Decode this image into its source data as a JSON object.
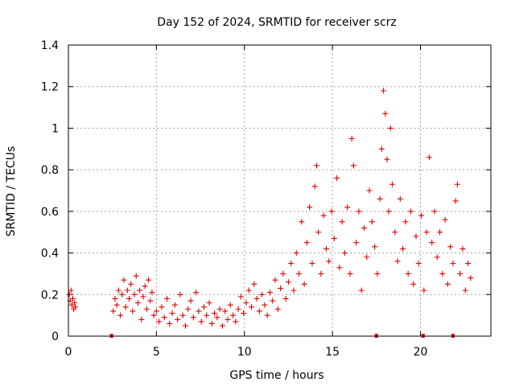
{
  "chart_data": {
    "type": "scatter",
    "title": "Day 152 of 2024, SRMTID for receiver scrz",
    "xlabel": "GPS time / hours",
    "ylabel": "SRMTID / TECUs",
    "xlim": [
      0,
      24
    ],
    "ylim": [
      0,
      1.4
    ],
    "x_ticks": [
      0,
      5,
      10,
      15,
      20
    ],
    "x_tick_labels": [
      "0",
      "5",
      "10",
      "15",
      "20"
    ],
    "y_ticks": [
      0,
      0.2,
      0.4,
      0.6,
      0.8,
      1,
      1.2,
      1.4
    ],
    "y_tick_labels": [
      "0",
      "0.2",
      "0.4",
      "0.6",
      "0.8",
      "1",
      "1.2",
      "1.4"
    ],
    "grid": true,
    "marker": "plus",
    "color": "#e00000",
    "series": [
      {
        "name": "SRMTID",
        "points": [
          [
            0.05,
            0.2
          ],
          [
            0.1,
            0.17
          ],
          [
            0.15,
            0.22
          ],
          [
            0.2,
            0.15
          ],
          [
            0.25,
            0.18
          ],
          [
            0.3,
            0.13
          ],
          [
            0.35,
            0.16
          ],
          [
            0.4,
            0.14
          ],
          [
            2.55,
            0.12
          ],
          [
            2.65,
            0.18
          ],
          [
            2.75,
            0.15
          ],
          [
            2.85,
            0.22
          ],
          [
            2.95,
            0.1
          ],
          [
            3.05,
            0.2
          ],
          [
            3.15,
            0.27
          ],
          [
            3.25,
            0.14
          ],
          [
            3.35,
            0.22
          ],
          [
            3.45,
            0.18
          ],
          [
            3.55,
            0.25
          ],
          [
            3.65,
            0.12
          ],
          [
            3.75,
            0.2
          ],
          [
            3.85,
            0.29
          ],
          [
            3.95,
            0.16
          ],
          [
            4.05,
            0.22
          ],
          [
            4.15,
            0.08
          ],
          [
            4.25,
            0.19
          ],
          [
            4.35,
            0.24
          ],
          [
            4.45,
            0.13
          ],
          [
            4.55,
            0.27
          ],
          [
            4.65,
            0.17
          ],
          [
            4.75,
            0.21
          ],
          [
            4.85,
            0.1
          ],
          [
            5.0,
            0.12
          ],
          [
            5.15,
            0.07
          ],
          [
            5.3,
            0.14
          ],
          [
            5.45,
            0.09
          ],
          [
            5.6,
            0.18
          ],
          [
            5.75,
            0.06
          ],
          [
            5.9,
            0.11
          ],
          [
            6.05,
            0.15
          ],
          [
            6.2,
            0.08
          ],
          [
            6.35,
            0.2
          ],
          [
            6.5,
            0.1
          ],
          [
            6.65,
            0.05
          ],
          [
            6.8,
            0.13
          ],
          [
            6.95,
            0.17
          ],
          [
            7.1,
            0.09
          ],
          [
            7.25,
            0.21
          ],
          [
            7.4,
            0.12
          ],
          [
            7.55,
            0.07
          ],
          [
            7.7,
            0.14
          ],
          [
            7.85,
            0.1
          ],
          [
            8.0,
            0.16
          ],
          [
            8.15,
            0.06
          ],
          [
            8.3,
            0.11
          ],
          [
            8.45,
            0.09
          ],
          [
            8.6,
            0.13
          ],
          [
            8.75,
            0.05
          ],
          [
            8.9,
            0.12
          ],
          [
            9.05,
            0.08
          ],
          [
            9.2,
            0.15
          ],
          [
            9.35,
            0.1
          ],
          [
            9.5,
            0.07
          ],
          [
            9.65,
            0.13
          ],
          [
            9.8,
            0.19
          ],
          [
            9.95,
            0.11
          ],
          [
            10.1,
            0.16
          ],
          [
            10.25,
            0.22
          ],
          [
            10.4,
            0.14
          ],
          [
            10.55,
            0.25
          ],
          [
            10.7,
            0.18
          ],
          [
            10.85,
            0.12
          ],
          [
            11.0,
            0.2
          ],
          [
            11.15,
            0.15
          ],
          [
            11.3,
            0.1
          ],
          [
            11.45,
            0.21
          ],
          [
            11.6,
            0.17
          ],
          [
            11.75,
            0.27
          ],
          [
            11.9,
            0.13
          ],
          [
            12.05,
            0.23
          ],
          [
            12.2,
            0.3
          ],
          [
            12.35,
            0.18
          ],
          [
            12.5,
            0.26
          ],
          [
            12.65,
            0.35
          ],
          [
            12.8,
            0.22
          ],
          [
            12.95,
            0.4
          ],
          [
            13.1,
            0.3
          ],
          [
            13.25,
            0.55
          ],
          [
            13.4,
            0.25
          ],
          [
            13.55,
            0.45
          ],
          [
            13.7,
            0.62
          ],
          [
            13.85,
            0.35
          ],
          [
            14.0,
            0.72
          ],
          [
            14.1,
            0.82
          ],
          [
            14.2,
            0.5
          ],
          [
            14.35,
            0.3
          ],
          [
            14.5,
            0.58
          ],
          [
            14.65,
            0.42
          ],
          [
            14.8,
            0.36
          ],
          [
            14.95,
            0.6
          ],
          [
            15.1,
            0.47
          ],
          [
            15.25,
            0.76
          ],
          [
            15.4,
            0.33
          ],
          [
            15.55,
            0.55
          ],
          [
            15.7,
            0.4
          ],
          [
            15.85,
            0.62
          ],
          [
            16.0,
            0.3
          ],
          [
            16.1,
            0.95
          ],
          [
            16.2,
            0.82
          ],
          [
            16.35,
            0.45
          ],
          [
            16.5,
            0.6
          ],
          [
            16.65,
            0.22
          ],
          [
            16.8,
            0.52
          ],
          [
            16.95,
            0.38
          ],
          [
            17.1,
            0.7
          ],
          [
            17.25,
            0.55
          ],
          [
            17.4,
            0.43
          ],
          [
            17.55,
            0.3
          ],
          [
            17.7,
            0.66
          ],
          [
            17.8,
            0.9
          ],
          [
            17.9,
            1.18
          ],
          [
            18.0,
            1.07
          ],
          [
            18.1,
            0.85
          ],
          [
            18.2,
            0.6
          ],
          [
            18.3,
            1.0
          ],
          [
            18.4,
            0.73
          ],
          [
            18.55,
            0.5
          ],
          [
            18.7,
            0.36
          ],
          [
            18.85,
            0.66
          ],
          [
            19.0,
            0.42
          ],
          [
            19.15,
            0.55
          ],
          [
            19.3,
            0.3
          ],
          [
            19.45,
            0.6
          ],
          [
            19.6,
            0.25
          ],
          [
            19.75,
            0.48
          ],
          [
            19.9,
            0.35
          ],
          [
            20.05,
            0.58
          ],
          [
            20.2,
            0.22
          ],
          [
            20.35,
            0.5
          ],
          [
            20.5,
            0.86
          ],
          [
            20.65,
            0.45
          ],
          [
            20.8,
            0.6
          ],
          [
            20.95,
            0.38
          ],
          [
            21.1,
            0.5
          ],
          [
            21.25,
            0.3
          ],
          [
            21.4,
            0.56
          ],
          [
            21.55,
            0.25
          ],
          [
            21.7,
            0.43
          ],
          [
            21.85,
            0.35
          ],
          [
            22.0,
            0.65
          ],
          [
            22.1,
            0.73
          ],
          [
            22.25,
            0.3
          ],
          [
            22.4,
            0.42
          ],
          [
            22.55,
            0.22
          ],
          [
            22.7,
            0.35
          ],
          [
            22.85,
            0.28
          ]
        ],
        "zero_markers": [
          2.45,
          17.5,
          20.15,
          21.85
        ]
      }
    ]
  }
}
